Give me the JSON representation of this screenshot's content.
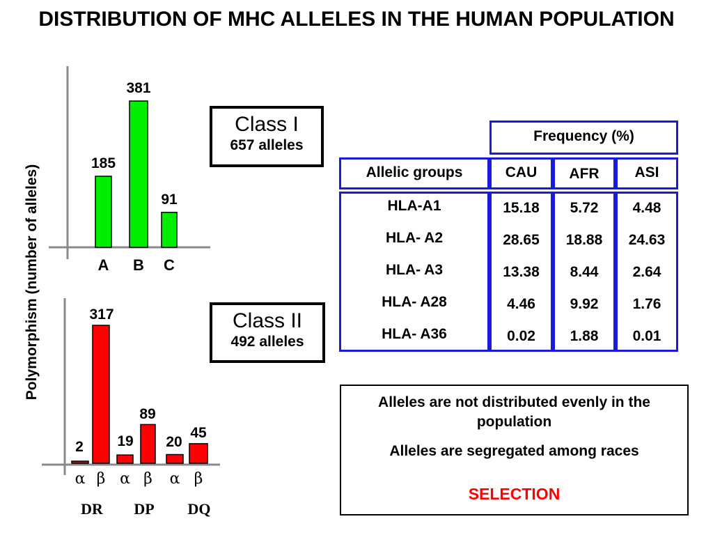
{
  "title": "DISTRIBUTION OF MHC ALLELES IN THE HUMAN POPULATION",
  "ylabel": "Polymorphism (number of alleles)",
  "colors": {
    "class1": "#00ee00",
    "class2": "#ff0000",
    "table_border": "#1a1adb",
    "selection": "#ff0000"
  },
  "chart_data": [
    {
      "type": "bar",
      "categories": [
        "A",
        "B",
        "C"
      ],
      "values": [
        185,
        381,
        91
      ],
      "data_labels": [
        "185",
        "381",
        "91"
      ],
      "ylabel": "Polymorphism (number of alleles)"
    },
    {
      "type": "bar",
      "categories": [
        "α",
        "β",
        "α",
        "β",
        "α",
        "β"
      ],
      "groups": [
        "DR",
        "DP",
        "DQ"
      ],
      "values": [
        2,
        317,
        19,
        89,
        20,
        45
      ],
      "data_labels": [
        "2",
        "317",
        "19",
        "89",
        "20",
        "45"
      ],
      "ylabel": "Polymorphism (number of alleles)"
    }
  ],
  "class1_box": {
    "title": "Class I",
    "subtitle": "657 alleles"
  },
  "class2_box": {
    "title": "Class II",
    "subtitle": "492 alleles"
  },
  "table": {
    "frequency_header": "Frequency (%)",
    "columns": [
      "Allelic groups",
      "CAU",
      "AFR",
      "ASI"
    ],
    "rows": [
      [
        "HLA-A1",
        "15.18",
        "5.72",
        "4.48"
      ],
      [
        "HLA- A2",
        "28.65",
        "18.88",
        "24.63"
      ],
      [
        "HLA- A3",
        "13.38",
        "8.44",
        "2.64"
      ],
      [
        "HLA- A28",
        "4.46",
        "9.92",
        "1.76"
      ],
      [
        "HLA- A36",
        "0.02",
        "1.88",
        "0.01"
      ]
    ]
  },
  "notes": {
    "line1": "Alleles are not distributed evenly in the population",
    "line2": "Alleles are segregated among races",
    "selection": "SELECTION"
  }
}
